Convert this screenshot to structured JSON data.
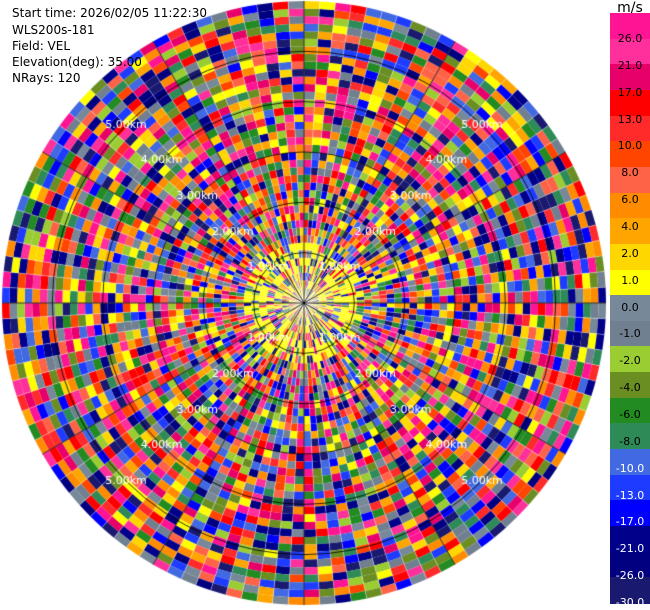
{
  "header": {
    "start_time": "Start time: 2026/02/05 11:22:30",
    "instrument": "WLS200s-181",
    "field": "Field: VEL",
    "elevation": "Elevation(deg): 35.00",
    "nrays": "NRays: 120"
  },
  "chart_data": {
    "type": "heatmap",
    "projection": "polar-ppi",
    "field": "VEL",
    "units": "m/s",
    "nrays": 120,
    "max_range_km": 6.0,
    "range_ring_labels": [
      "1.00km",
      "2.00km",
      "3.00km",
      "4.00km",
      "5.00km"
    ],
    "range_rings_km": [
      1,
      2,
      3,
      4,
      5
    ],
    "colorbar": {
      "title": "m/s",
      "tick_labels": [
        "26.0",
        "21.0",
        "17.0",
        "13.0",
        "10.0",
        "8.0",
        "6.0",
        "4.0",
        "2.0",
        "1.0",
        "0.0",
        "-1.0",
        "-2.0",
        "-4.0",
        "-6.0",
        "-8.0",
        "-10.0",
        "-13.0",
        "-17.0",
        "-21.0",
        "-26.0",
        "-30.0"
      ],
      "colors": [
        "#ff1493",
        "#ff2f9b",
        "#e8006a",
        "#ff0000",
        "#ff2a2a",
        "#ff4500",
        "#ff6347",
        "#ff8c00",
        "#ffa500",
        "#ffd700",
        "#ffff00",
        "#778899",
        "#708090",
        "#9acd32",
        "#6b8e23",
        "#228b22",
        "#2e8b57",
        "#4169e1",
        "#1e3cff",
        "#0000ff",
        "#00008b",
        "#000080",
        "#191970"
      ]
    }
  }
}
